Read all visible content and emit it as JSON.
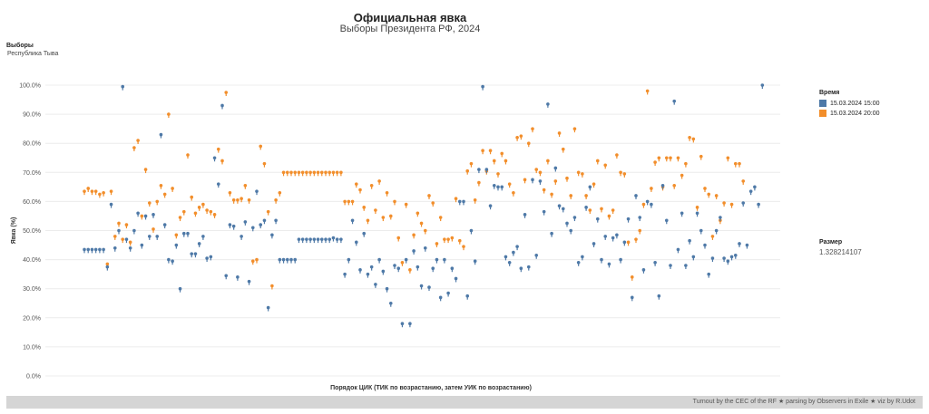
{
  "header": {
    "title": "Официальная явка",
    "subtitle": "Выборы Президента РФ, 2024"
  },
  "filter": {
    "label": "Выборы",
    "value": "Республика Тыва"
  },
  "legend": {
    "title": "Время",
    "items": [
      {
        "label": "15.03.2024 15:00",
        "color": "#4e79a7"
      },
      {
        "label": "15.03.2024 20:00",
        "color": "#f28e2b"
      }
    ]
  },
  "size_legend": {
    "title": "Размер",
    "value": "1.328214107"
  },
  "footer": {
    "credit": "Turnout by the CEC of the RF ★ parsing by Observers in Exile ★ viz by R.Udot"
  },
  "chart_data": {
    "type": "scatter",
    "title": "Официальная явка",
    "subtitle": "Выборы Президента РФ, 2024",
    "xlabel": "Порядок ЦИК (ТИК по возрастанию, затем УИК по возрастанию)",
    "ylabel": "Явка (%)",
    "ylim": [
      0,
      100
    ],
    "yticks": [
      "0.0%",
      "10.0%",
      "20.0%",
      "30.0%",
      "40.0%",
      "50.0%",
      "60.0%",
      "70.0%",
      "80.0%",
      "90.0%",
      "100.0%"
    ],
    "x_range": [
      1,
      181
    ],
    "series": [
      {
        "name": "15.03.2024 15:00",
        "color": "#4e79a7",
        "values": [
          43.5,
          43.5,
          43.5,
          43.5,
          43.5,
          43.5,
          37.5,
          59,
          44,
          50,
          99.5,
          47,
          44,
          50,
          56,
          45,
          55,
          48,
          55.5,
          48,
          83,
          52,
          40,
          39.5,
          45,
          30,
          49,
          49,
          42,
          42,
          45.5,
          48,
          40.5,
          41,
          75,
          66,
          93,
          34.5,
          52,
          51.5,
          34,
          48,
          53,
          32.5,
          51,
          63.5,
          52,
          53.5,
          23.5,
          48.5,
          53.5,
          40,
          40,
          40,
          40,
          40,
          47,
          47,
          47,
          47,
          47,
          47,
          47,
          47,
          47,
          47.5,
          47,
          47,
          35,
          40,
          53.5,
          46,
          36.5,
          49,
          35,
          37.5,
          31.5,
          40,
          36,
          30,
          25,
          38,
          37,
          18,
          40,
          18,
          43,
          37.5,
          31,
          44,
          30.5,
          37,
          40,
          27,
          40,
          28.5,
          37,
          33.5,
          60,
          60,
          27.5,
          50,
          39.5,
          71,
          99.5,
          71,
          58.5,
          65.5,
          65,
          65,
          41,
          39,
          42.5,
          44.5,
          37,
          55.5,
          37.5,
          67.5,
          41.5,
          67,
          56.5,
          93.5,
          49,
          71.5,
          58.5,
          57.5,
          52.5,
          50,
          54.5,
          39,
          41,
          58,
          65,
          45.5,
          54,
          40,
          48,
          38.5,
          47.5,
          48.5,
          40,
          46,
          54,
          27,
          62,
          54.5,
          36.5,
          60,
          59,
          39,
          27.5,
          65.5,
          53.5,
          38,
          94.5,
          43.5,
          56,
          38,
          46.5,
          41,
          56,
          50,
          45,
          35,
          40.5,
          50,
          54.5,
          40.5,
          39.5,
          41,
          41.5,
          45.5,
          59.5,
          45,
          63.5,
          65,
          59,
          100
        ]
      },
      {
        "name": "15.03.2024 20:00",
        "color": "#f28e2b",
        "values": [
          63.5,
          64.5,
          63.5,
          63.5,
          62.5,
          63,
          38.5,
          63.5,
          48,
          52.5,
          47,
          52,
          46,
          78.5,
          81,
          55,
          71,
          59.5,
          50.5,
          60,
          65.5,
          62.5,
          90,
          64.5,
          48.5,
          54.5,
          56.5,
          76,
          61.5,
          56,
          58,
          59,
          57,
          56.5,
          55.5,
          78,
          74,
          97.5,
          63,
          60.5,
          60.5,
          61,
          65.5,
          60.5,
          39.5,
          40,
          79,
          73,
          56.5,
          31,
          60.5,
          63,
          70,
          70,
          70,
          70,
          70,
          70,
          70,
          70,
          70,
          70,
          70,
          70,
          70,
          70,
          70,
          70,
          60,
          60,
          60,
          66,
          64,
          58,
          53.5,
          65.5,
          57,
          67,
          54.5,
          63,
          55,
          60,
          47.5,
          39,
          59,
          36.5,
          48.5,
          56,
          52.5,
          50,
          62,
          59.5,
          45.5,
          54.5,
          47,
          47,
          47.5,
          61,
          46.5,
          44.5,
          70.5,
          73,
          60.5,
          66.5,
          77.5,
          70.5,
          77.5,
          74,
          69.5,
          76.5,
          74,
          66,
          63,
          82,
          82.5,
          67.5,
          80,
          85,
          71,
          70,
          64,
          74,
          62.5,
          67,
          83.5,
          78,
          68,
          62,
          85,
          70,
          69.5,
          62,
          57,
          66,
          74,
          57.5,
          72.5,
          55,
          57,
          76,
          70,
          69.5,
          46,
          34,
          47,
          50,
          59,
          98,
          64.5,
          73.5,
          75,
          65,
          75,
          75,
          65.5,
          75,
          69,
          73,
          82,
          81.5,
          58,
          75.5,
          64.5,
          62.5,
          48,
          62,
          53.5,
          59.5,
          75,
          59,
          73,
          73,
          67
        ]
      }
    ]
  }
}
